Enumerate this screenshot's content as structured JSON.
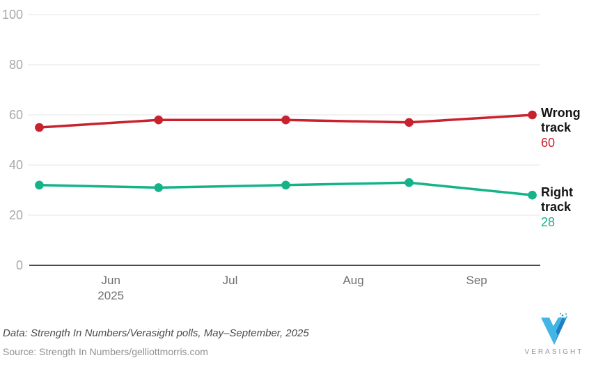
{
  "chart_data": {
    "type": "line",
    "title": "",
    "xlabel": "",
    "ylabel": "",
    "ylim": [
      0,
      100
    ],
    "y_ticks": [
      0,
      20,
      40,
      60,
      80,
      100
    ],
    "grid": true,
    "x_domain": [
      "2025-05-12",
      "2025-09-17"
    ],
    "x_ticks": [
      {
        "date": "2025-06-01",
        "label": "Jun",
        "sublabel": "2025"
      },
      {
        "date": "2025-07-01",
        "label": "Jul",
        "sublabel": ""
      },
      {
        "date": "2025-08-01",
        "label": "Aug",
        "sublabel": ""
      },
      {
        "date": "2025-09-01",
        "label": "Sep",
        "sublabel": ""
      }
    ],
    "x_dates": [
      "2025-05-14",
      "2025-06-13",
      "2025-07-15",
      "2025-08-15",
      "2025-09-15"
    ],
    "series": [
      {
        "name": "Wrong track",
        "label_lines": [
          "Wrong",
          "track"
        ],
        "values": [
          55,
          58,
          58,
          57,
          60
        ],
        "latest": 60,
        "color": "#c9222f"
      },
      {
        "name": "Right track",
        "label_lines": [
          "Right",
          "track"
        ],
        "values": [
          32,
          31,
          32,
          33,
          28
        ],
        "latest": 28,
        "color": "#14b38a"
      }
    ],
    "legend_position": "right-of-last-point",
    "colors": {
      "gridline": "#e6e6e6",
      "axis_line": "#4d4d4d",
      "y_tick_label": "#a9a9a9",
      "x_tick_label": "#6f6f6f"
    }
  },
  "footer": {
    "data_note": "Data: Strength In Numbers/Verasight polls, May–September, 2025",
    "source_note": "Source: Strength In Numbers/gelliottmorris.com"
  },
  "logo": {
    "text": "VERASIGHT",
    "color_light": "#41b6e6",
    "color_dark": "#1e7fc2"
  }
}
